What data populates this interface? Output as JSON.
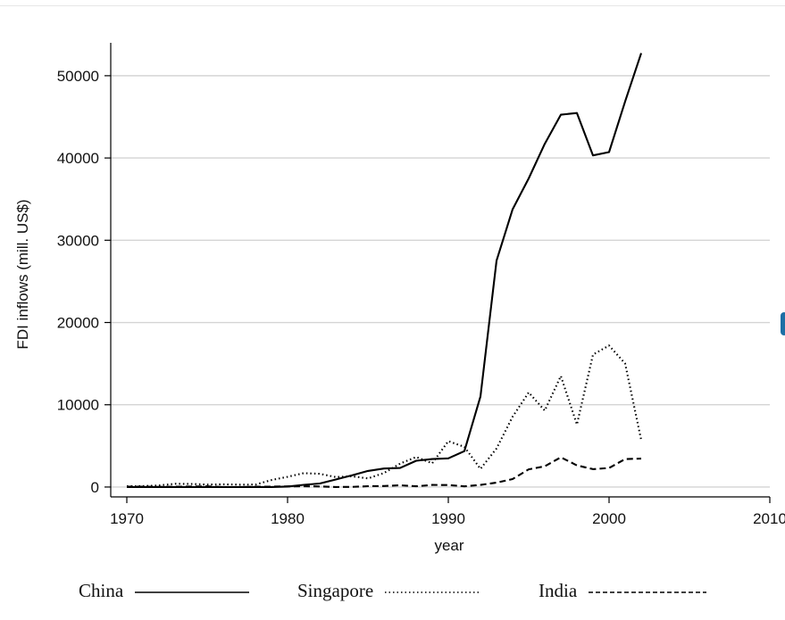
{
  "chart_data": {
    "type": "line",
    "xlabel": "year",
    "ylabel": "FDI inflows (mill. US$)",
    "xlim": [
      1969,
      2010
    ],
    "ylim": [
      -1200,
      54000
    ],
    "xticks": [
      1970,
      1980,
      1990,
      2000,
      2010
    ],
    "yticks": [
      0,
      10000,
      20000,
      30000,
      40000,
      50000
    ],
    "grid": "horizontal",
    "legend_position": "bottom",
    "series": [
      {
        "name": "China",
        "style": "solid",
        "x": [
          1970,
          1971,
          1972,
          1973,
          1974,
          1975,
          1976,
          1977,
          1978,
          1979,
          1980,
          1981,
          1982,
          1983,
          1984,
          1985,
          1986,
          1987,
          1988,
          1989,
          1990,
          1991,
          1992,
          1993,
          1994,
          1995,
          1996,
          1997,
          1998,
          1999,
          2000,
          2001,
          2002
        ],
        "y": [
          0,
          0,
          0,
          0,
          0,
          0,
          0,
          0,
          0,
          0,
          57,
          265,
          430,
          916,
          1419,
          1956,
          2244,
          2314,
          3194,
          3393,
          3487,
          4366,
          11008,
          27515,
          33767,
          37521,
          41726,
          45257,
          45463,
          40319,
          40715,
          46878,
          52743
        ]
      },
      {
        "name": "Singapore",
        "style": "dotted",
        "x": [
          1970,
          1971,
          1972,
          1973,
          1974,
          1975,
          1976,
          1977,
          1978,
          1979,
          1980,
          1981,
          1982,
          1983,
          1984,
          1985,
          1986,
          1987,
          1988,
          1989,
          1990,
          1991,
          1992,
          1993,
          1994,
          1995,
          1996,
          1997,
          1998,
          1999,
          2000,
          2001,
          2002
        ],
        "y": [
          93,
          116,
          190,
          389,
          373,
          292,
          330,
          290,
          300,
          850,
          1240,
          1680,
          1610,
          1210,
          1300,
          1050,
          1710,
          2840,
          3650,
          2890,
          5580,
          4880,
          2200,
          4690,
          8550,
          11500,
          9300,
          13500,
          7600,
          16100,
          17200,
          15000,
          5700
        ]
      },
      {
        "name": "India",
        "style": "dashed",
        "x": [
          1970,
          1971,
          1972,
          1973,
          1974,
          1975,
          1976,
          1977,
          1978,
          1979,
          1980,
          1981,
          1982,
          1983,
          1984,
          1985,
          1986,
          1987,
          1988,
          1989,
          1990,
          1991,
          1992,
          1993,
          1994,
          1995,
          1996,
          1997,
          1998,
          1999,
          2000,
          2001,
          2002
        ],
        "y": [
          45,
          48,
          18,
          38,
          57,
          85,
          -10,
          -6,
          32,
          52,
          79,
          92,
          72,
          6,
          19,
          106,
          118,
          212,
          91,
          252,
          237,
          75,
          252,
          532,
          974,
          2151,
          2525,
          3619,
          2633,
          2168,
          2319,
          3403,
          3449
        ]
      }
    ]
  },
  "legend": {
    "china": "China",
    "singapore": "Singapore",
    "india": "India"
  }
}
